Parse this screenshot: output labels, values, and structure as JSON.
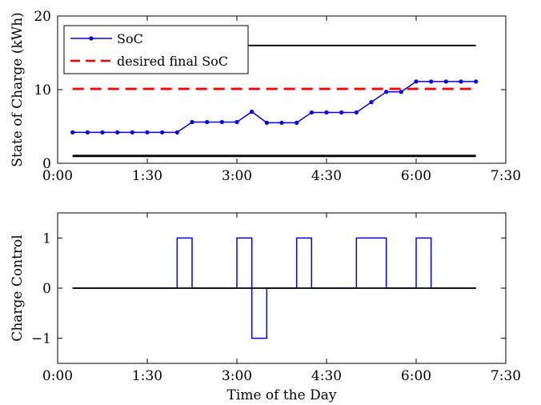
{
  "chart_data": [
    {
      "type": "line",
      "title": "",
      "xlabel": "",
      "ylabel": "State of Charge (kWh)",
      "xlim": [
        0,
        7.5
      ],
      "ylim": [
        0,
        20
      ],
      "x_ticks": [
        0,
        1.5,
        3,
        4.5,
        6,
        7.5
      ],
      "x_tick_labels": [
        "0:00",
        "1:30",
        "3:00",
        "4:30",
        "6:00",
        "7:30"
      ],
      "y_ticks": [
        0,
        10,
        20
      ],
      "y_tick_labels": [
        "0",
        "10",
        "20"
      ],
      "grid": false,
      "legend_position": "top-left",
      "series": [
        {
          "name": "SoC",
          "color": "#0000ff",
          "style": "solid-with-dots",
          "x": [
            0.25,
            0.5,
            0.75,
            1.0,
            1.25,
            1.5,
            1.75,
            2.0,
            2.25,
            2.5,
            2.75,
            3.0,
            3.25,
            3.5,
            3.75,
            4.0,
            4.25,
            4.5,
            4.75,
            5.0,
            5.25,
            5.5,
            5.75,
            6.0,
            6.25,
            6.5,
            6.75,
            7.0
          ],
          "values": [
            4.2,
            4.2,
            4.2,
            4.2,
            4.2,
            4.2,
            4.2,
            4.2,
            5.6,
            5.6,
            5.6,
            5.6,
            7.0,
            5.5,
            5.5,
            5.5,
            6.9,
            6.9,
            6.9,
            6.9,
            8.3,
            9.7,
            9.7,
            11.1,
            11.1,
            11.1,
            11.1,
            11.1
          ]
        },
        {
          "name": "desired final SoC",
          "color": "#ff0000",
          "style": "dashed",
          "x": [
            0.25,
            7.0
          ],
          "values": [
            10.1,
            10.1
          ]
        },
        {
          "color": "#000000",
          "style": "solid",
          "x": [
            0.25,
            7.0
          ],
          "values": [
            16.0,
            16.0
          ]
        },
        {
          "color": "#000000",
          "style": "solid",
          "x": [
            0.25,
            7.0
          ],
          "values": [
            1.0,
            1.0
          ]
        }
      ]
    },
    {
      "type": "line",
      "title": "",
      "xlabel": "Time of the Day",
      "ylabel": "Charge Control",
      "xlim": [
        0,
        7.5
      ],
      "ylim": [
        -1.5,
        1.5
      ],
      "x_ticks": [
        0,
        1.5,
        3,
        4.5,
        6,
        7.5
      ],
      "x_tick_labels": [
        "0:00",
        "1:30",
        "3:00",
        "4:30",
        "6:00",
        "7:30"
      ],
      "y_ticks": [
        -1,
        0,
        1
      ],
      "y_tick_labels": [
        "−1",
        "0",
        "1"
      ],
      "grid": false,
      "series": [
        {
          "color": "#0000ff",
          "style": "stairs",
          "x": [
            0.25,
            2.0,
            2.0,
            2.25,
            2.25,
            3.0,
            3.0,
            3.25,
            3.25,
            3.5,
            3.5,
            4.0,
            4.0,
            4.25,
            4.25,
            5.0,
            5.0,
            5.5,
            5.5,
            5.75,
            5.75,
            6.0,
            6.0,
            6.25,
            6.25,
            7.0
          ],
          "values": [
            0,
            0,
            1,
            1,
            0,
            0,
            1,
            1,
            -1,
            -1,
            0,
            0,
            1,
            1,
            0,
            0,
            1,
            1,
            0,
            0,
            0,
            0,
            1,
            1,
            0,
            0
          ]
        },
        {
          "color": "#000000",
          "style": "solid",
          "x": [
            0.25,
            7.0
          ],
          "values": [
            0,
            0
          ]
        }
      ]
    }
  ]
}
